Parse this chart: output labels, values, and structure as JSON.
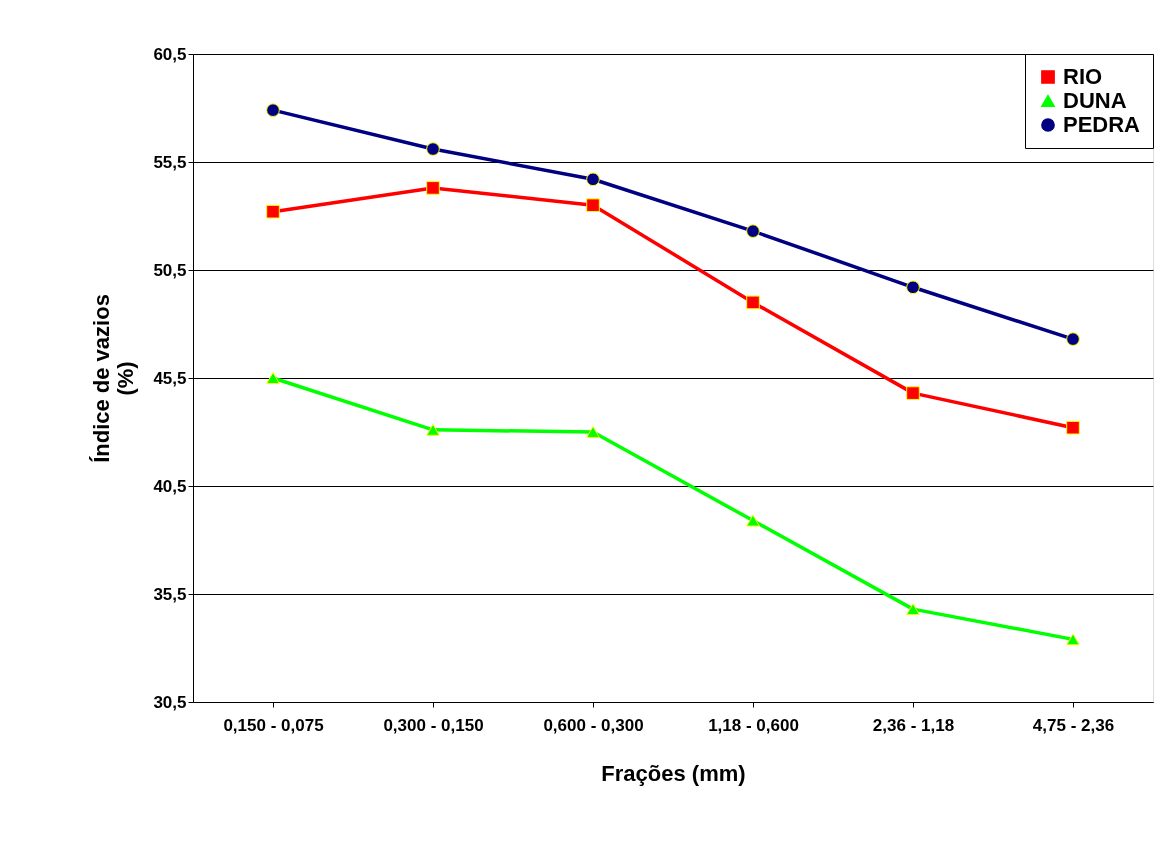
{
  "chart_data": {
    "type": "line",
    "xlabel": "Frações (mm)",
    "ylabel": "Índice de vazios (%)",
    "categories": [
      "0,150 - 0,075",
      "0,300 - 0,150",
      "0,600 - 0,300",
      "1,18 - 0,600",
      "2,36 - 1,18",
      "4,75 - 2,36"
    ],
    "series": [
      {
        "name": "RIO",
        "color": "#ff0000",
        "marker": "square",
        "values": [
          53.2,
          54.3,
          53.5,
          49.0,
          44.8,
          43.2
        ]
      },
      {
        "name": "DUNA",
        "color": "#00ff00",
        "marker": "triangle",
        "values": [
          45.5,
          43.1,
          43.0,
          38.9,
          34.8,
          33.4
        ]
      },
      {
        "name": "PEDRA",
        "color": "#000080",
        "marker": "circle",
        "values": [
          57.9,
          56.1,
          54.7,
          52.3,
          49.7,
          47.3
        ]
      }
    ],
    "ylim": [
      30.5,
      60.5
    ],
    "yticks": [
      {
        "value": 30.5,
        "label": "30,5"
      },
      {
        "value": 35.5,
        "label": "35,5"
      },
      {
        "value": 40.5,
        "label": "40,5"
      },
      {
        "value": 45.5,
        "label": "45,5"
      },
      {
        "value": 50.5,
        "label": "50,5"
      },
      {
        "value": 55.5,
        "label": "55,5"
      },
      {
        "value": 60.5,
        "label": "60,5"
      }
    ],
    "grid": "y",
    "legend": "top right",
    "line_style": "solid"
  }
}
